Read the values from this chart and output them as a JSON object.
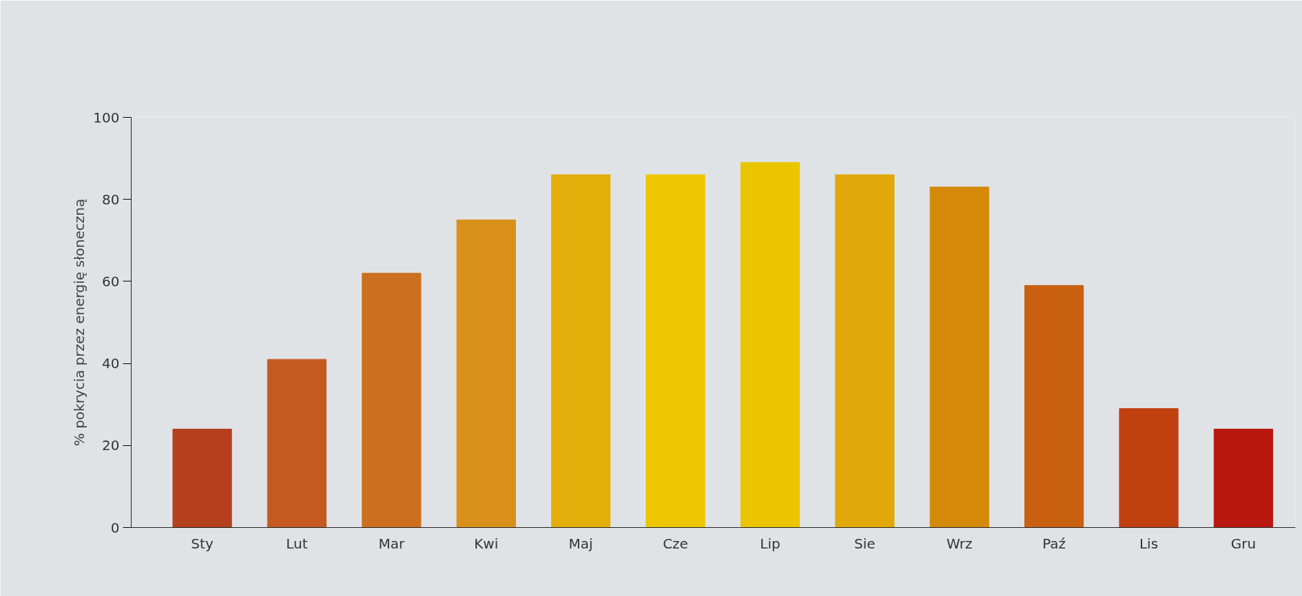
{
  "chart_data": {
    "type": "bar",
    "ylabel": "% pokrycia przez energię słoneczną",
    "categories": [
      "Sty",
      "Lut",
      "Mar",
      "Kwi",
      "Maj",
      "Cze",
      "Lip",
      "Sie",
      "Wrz",
      "Paź",
      "Lis",
      "Gru"
    ],
    "values": [
      24,
      41,
      62,
      75,
      86,
      86,
      89,
      86,
      83,
      59,
      29,
      24
    ],
    "colors": [
      "#b5401e",
      "#c45a20",
      "#cc7020",
      "#d8901a",
      "#e4ae0a",
      "#ecc700",
      "#ebc500",
      "#e0a808",
      "#d48a08",
      "#c86010",
      "#c04010",
      "#b81810"
    ],
    "ylim": [
      0,
      100
    ],
    "yticks": [
      0,
      20,
      40,
      60,
      80,
      100
    ],
    "grid": false
  }
}
